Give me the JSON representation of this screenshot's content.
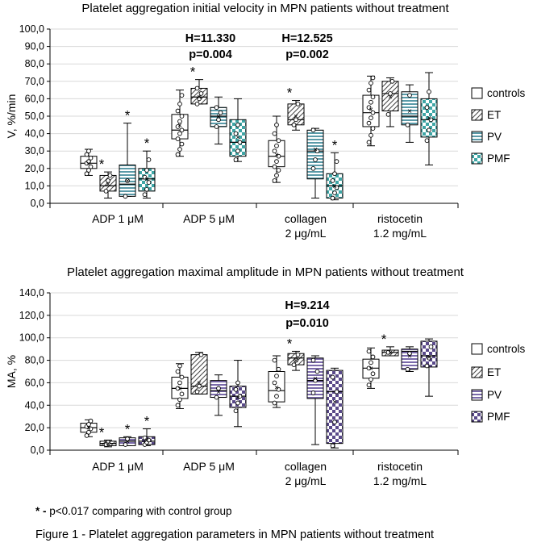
{
  "chart_data": [
    {
      "type": "box",
      "title": "Platelet aggregation initial velocity in MPN patients without treatment",
      "ylabel": "V, %/min",
      "ylim": [
        0,
        100
      ],
      "yticks": [
        0,
        10,
        20,
        30,
        40,
        50,
        60,
        70,
        80,
        90,
        100
      ],
      "ytick_labels": [
        "0,0",
        "10,0",
        "20,0",
        "30,0",
        "40,0",
        "50,0",
        "60,0",
        "70,0",
        "80,0",
        "90,0",
        "100,0"
      ],
      "grid": "horizontal",
      "legend_position": "right",
      "categories": [
        "ADP 1 μM",
        "ADP 5 μM",
        "collagen 2 μg/mL",
        "ristocetin 1.2 mg/mL"
      ],
      "category_lines": [
        [
          "ADP 1 μM"
        ],
        [
          "ADP 5 μM"
        ],
        [
          "collagen",
          "2 μg/mL"
        ],
        [
          "ristocetin",
          "1.2 mg/mL"
        ]
      ],
      "series": [
        {
          "name": "controls",
          "pattern": "white",
          "color": "#ffffff",
          "boxes": [
            {
              "min": 16,
              "q1": 20,
              "median": 23,
              "q3": 27,
              "max": 31,
              "mean": 23,
              "points": [
                17,
                19,
                21,
                23,
                24,
                26,
                28,
                30
              ]
            },
            {
              "min": 27,
              "q1": 37,
              "median": 42,
              "q3": 51,
              "max": 65,
              "mean": 45,
              "points": [
                28,
                31,
                34,
                37,
                40,
                42,
                44,
                47,
                50,
                53,
                57,
                62
              ]
            },
            {
              "min": 12,
              "q1": 21,
              "median": 27,
              "q3": 36,
              "max": 50,
              "mean": 28,
              "points": [
                13,
                16,
                19,
                21,
                24,
                27,
                30,
                33,
                36,
                40,
                45
              ]
            },
            {
              "min": 33,
              "q1": 44,
              "median": 52,
              "q3": 62,
              "max": 73,
              "mean": 54,
              "points": [
                35,
                39,
                43,
                46,
                49,
                52,
                55,
                58,
                61,
                65,
                69,
                72
              ]
            }
          ]
        },
        {
          "name": "ET",
          "pattern": "diag",
          "color": "#3a6e7a",
          "boxes": [
            {
              "min": 3,
              "q1": 7,
              "median": 10,
              "q3": 16,
              "max": 18,
              "mean": 11,
              "points": [
                7,
                13,
                16
              ]
            },
            {
              "min": 57,
              "q1": 57,
              "median": 61,
              "q3": 66,
              "max": 71,
              "mean": 61,
              "points": [
                57,
                60,
                63,
                66
              ]
            },
            {
              "min": 42,
              "q1": 45,
              "median": 48,
              "q3": 57,
              "max": 59,
              "mean": 50,
              "points": [
                45,
                48,
                57
              ]
            },
            {
              "min": 44,
              "q1": 53,
              "median": 63,
              "q3": 70,
              "max": 72,
              "mean": 61,
              "points": [
                51,
                63,
                70
              ]
            }
          ]
        },
        {
          "name": "PV",
          "pattern": "hstripe",
          "color": "#5a9aa8",
          "boxes": [
            {
              "min": 4,
              "q1": 4,
              "median": 11,
              "q3": 22,
              "max": 46,
              "mean": 13,
              "points": [
                4,
                13
              ]
            },
            {
              "min": 34,
              "q1": 44,
              "median": 50,
              "q3": 55,
              "max": 61,
              "mean": 50,
              "points": [
                44,
                48,
                52,
                55
              ]
            },
            {
              "min": 3,
              "q1": 14,
              "median": 30,
              "q3": 42,
              "max": 43,
              "mean": 31,
              "points": [
                20,
                25,
                30,
                42
              ]
            },
            {
              "min": 35,
              "q1": 45,
              "median": 50,
              "q3": 64,
              "max": 68,
              "mean": 53,
              "points": [
                45,
                62
              ]
            }
          ]
        },
        {
          "name": "PMF",
          "pattern": "check",
          "color": "#3fa6a6",
          "boxes": [
            {
              "min": 3,
              "q1": 7,
              "median": 14,
              "q3": 20,
              "max": 30,
              "mean": 14,
              "points": [
                5,
                8,
                12,
                15,
                19,
                25
              ]
            },
            {
              "min": 24,
              "q1": 27,
              "median": 35,
              "q3": 48,
              "max": 60,
              "mean": 38,
              "points": [
                25,
                30,
                35,
                40,
                45
              ]
            },
            {
              "min": 2,
              "q1": 3,
              "median": 10,
              "q3": 17,
              "max": 29,
              "mean": 10,
              "points": [
                3,
                6,
                9,
                13,
                17,
                24
              ]
            },
            {
              "min": 22,
              "q1": 38,
              "median": 48,
              "q3": 60,
              "max": 75,
              "mean": 49,
              "points": [
                36,
                42,
                48,
                55,
                64
              ]
            }
          ]
        }
      ],
      "stats": [
        {
          "category": "ADP 5 μM",
          "lines": [
            "H=11.330",
            "p=0.004"
          ]
        },
        {
          "category": "collagen 2 μg/mL",
          "lines": [
            "H=12.525",
            "p=0.002"
          ]
        }
      ],
      "significance": [
        {
          "category": "ADP 1 μM",
          "series": "ET",
          "mark": "*"
        },
        {
          "category": "ADP 1 μM",
          "series": "PV",
          "mark": "*"
        },
        {
          "category": "ADP 1 μM",
          "series": "PMF",
          "mark": "*"
        },
        {
          "category": "ADP 5 μM",
          "series": "ET",
          "mark": "*"
        },
        {
          "category": "collagen 2 μg/mL",
          "series": "ET",
          "mark": "*"
        },
        {
          "category": "collagen 2 μg/mL",
          "series": "PMF",
          "mark": "*"
        }
      ]
    },
    {
      "type": "box",
      "title": "Platelet aggregation maximal amplitude in MPN patients without treatment",
      "ylabel": "MA, %",
      "ylim": [
        0,
        140
      ],
      "yticks": [
        0,
        20,
        40,
        60,
        80,
        100,
        120,
        140
      ],
      "ytick_labels": [
        "0,0",
        "20,0",
        "40,0",
        "60,0",
        "80,0",
        "100,0",
        "120,0",
        "140,0"
      ],
      "grid": "horizontal",
      "legend_position": "right",
      "categories": [
        "ADP 1 μM",
        "ADP 5 μM",
        "collagen 2 μg/mL",
        "ristocetin 1.2 mg/mL"
      ],
      "category_lines": [
        [
          "ADP 1 μM"
        ],
        [
          "ADP 5 μM"
        ],
        [
          "collagen",
          "2 μg/mL"
        ],
        [
          "ristocetin",
          "1.2 mg/mL"
        ]
      ],
      "series": [
        {
          "name": "controls",
          "pattern": "white",
          "color": "#ffffff",
          "boxes": [
            {
              "min": 12,
              "q1": 16,
              "median": 20,
              "q3": 24,
              "max": 27,
              "mean": 20,
              "points": [
                13,
                16,
                19,
                21,
                23,
                26
              ]
            },
            {
              "min": 37,
              "q1": 46,
              "median": 55,
              "q3": 65,
              "max": 77,
              "mean": 55,
              "points": [
                40,
                45,
                50,
                55,
                60,
                65,
                70,
                75
              ]
            },
            {
              "min": 38,
              "q1": 43,
              "median": 53,
              "q3": 70,
              "max": 84,
              "mean": 56,
              "points": [
                42,
                48,
                54,
                60,
                66,
                72,
                80
              ]
            },
            {
              "min": 55,
              "q1": 64,
              "median": 73,
              "q3": 81,
              "max": 91,
              "mean": 73,
              "points": [
                58,
                63,
                68,
                73,
                78,
                83,
                88
              ]
            }
          ]
        },
        {
          "name": "ET",
          "pattern": "diag",
          "color": "#5a4a8a",
          "boxes": [
            {
              "min": 3,
              "q1": 4,
              "median": 6,
              "q3": 8,
              "max": 9,
              "mean": 6,
              "points": [
                5,
                7
              ]
            },
            {
              "min": 50,
              "q1": 50,
              "median": 57,
              "q3": 85,
              "max": 87,
              "mean": 60,
              "points": [
                52,
                57,
                85
              ]
            },
            {
              "min": 71,
              "q1": 76,
              "median": 82,
              "q3": 86,
              "max": 88,
              "mean": 80,
              "points": [
                76,
                80,
                85
              ]
            },
            {
              "min": 84,
              "q1": 84,
              "median": 87,
              "q3": 89,
              "max": 92,
              "mean": 87,
              "points": [
                87
              ]
            }
          ]
        },
        {
          "name": "PV",
          "pattern": "hstripe",
          "color": "#7a6aaa",
          "boxes": [
            {
              "min": 4,
              "q1": 4,
              "median": 8,
              "q3": 11,
              "max": 12,
              "mean": 8,
              "points": [
                5,
                10
              ]
            },
            {
              "min": 31,
              "q1": 47,
              "median": 53,
              "q3": 62,
              "max": 67,
              "mean": 52,
              "points": [
                47,
                55
              ]
            },
            {
              "min": 5,
              "q1": 46,
              "median": 62,
              "q3": 82,
              "max": 84,
              "mean": 64,
              "points": [
                51,
                62,
                70,
                80
              ]
            },
            {
              "min": 70,
              "q1": 72,
              "median": 88,
              "q3": 90,
              "max": 92,
              "mean": 84,
              "points": [
                72,
                86
              ]
            }
          ]
        },
        {
          "name": "PMF",
          "pattern": "check",
          "color": "#5a4a8a",
          "boxes": [
            {
              "min": 4,
              "q1": 5,
              "median": 8,
              "q3": 12,
              "max": 19,
              "mean": 9,
              "points": [
                5,
                7,
                9,
                11
              ]
            },
            {
              "min": 21,
              "q1": 38,
              "median": 48,
              "q3": 57,
              "max": 80,
              "mean": 47,
              "points": [
                35,
                42,
                48,
                54,
                60
              ]
            },
            {
              "min": 2,
              "q1": 6,
              "median": 52,
              "q3": 71,
              "max": 73,
              "mean": 43,
              "points": [
                4,
                25,
                52,
                65
              ]
            },
            {
              "min": 48,
              "q1": 74,
              "median": 84,
              "q3": 97,
              "max": 99,
              "mean": 83,
              "points": [
                75,
                82,
                92
              ]
            }
          ]
        }
      ],
      "stats": [
        {
          "category": "collagen 2 μg/mL",
          "lines": [
            "H=9.214",
            "p=0.010"
          ]
        }
      ],
      "significance": [
        {
          "category": "ADP 1 μM",
          "series": "ET",
          "mark": "*"
        },
        {
          "category": "ADP 1 μM",
          "series": "PV",
          "mark": "*"
        },
        {
          "category": "ADP 1 μM",
          "series": "PMF",
          "mark": "*"
        },
        {
          "category": "collagen 2 μg/mL",
          "series": "ET",
          "mark": "*"
        },
        {
          "category": "ristocetin 1.2 mg/mL",
          "series": "ET",
          "mark": "*"
        }
      ]
    }
  ],
  "footnote": {
    "mark": "* -",
    "text": " p<0.017 comparing with control group"
  },
  "caption": "Figure 1 - Platelet aggregation parameters in MPN patients without treatment"
}
